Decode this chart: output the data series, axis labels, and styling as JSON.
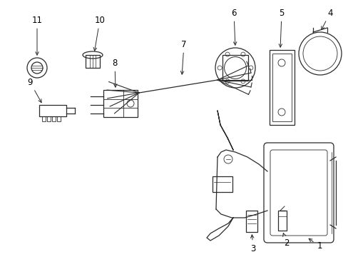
{
  "background": "#ffffff",
  "line_color": "#2a2a2a",
  "label_color": "#000000",
  "label_fontsize": 8.5,
  "fig_width": 4.89,
  "fig_height": 3.6,
  "dpi": 100
}
